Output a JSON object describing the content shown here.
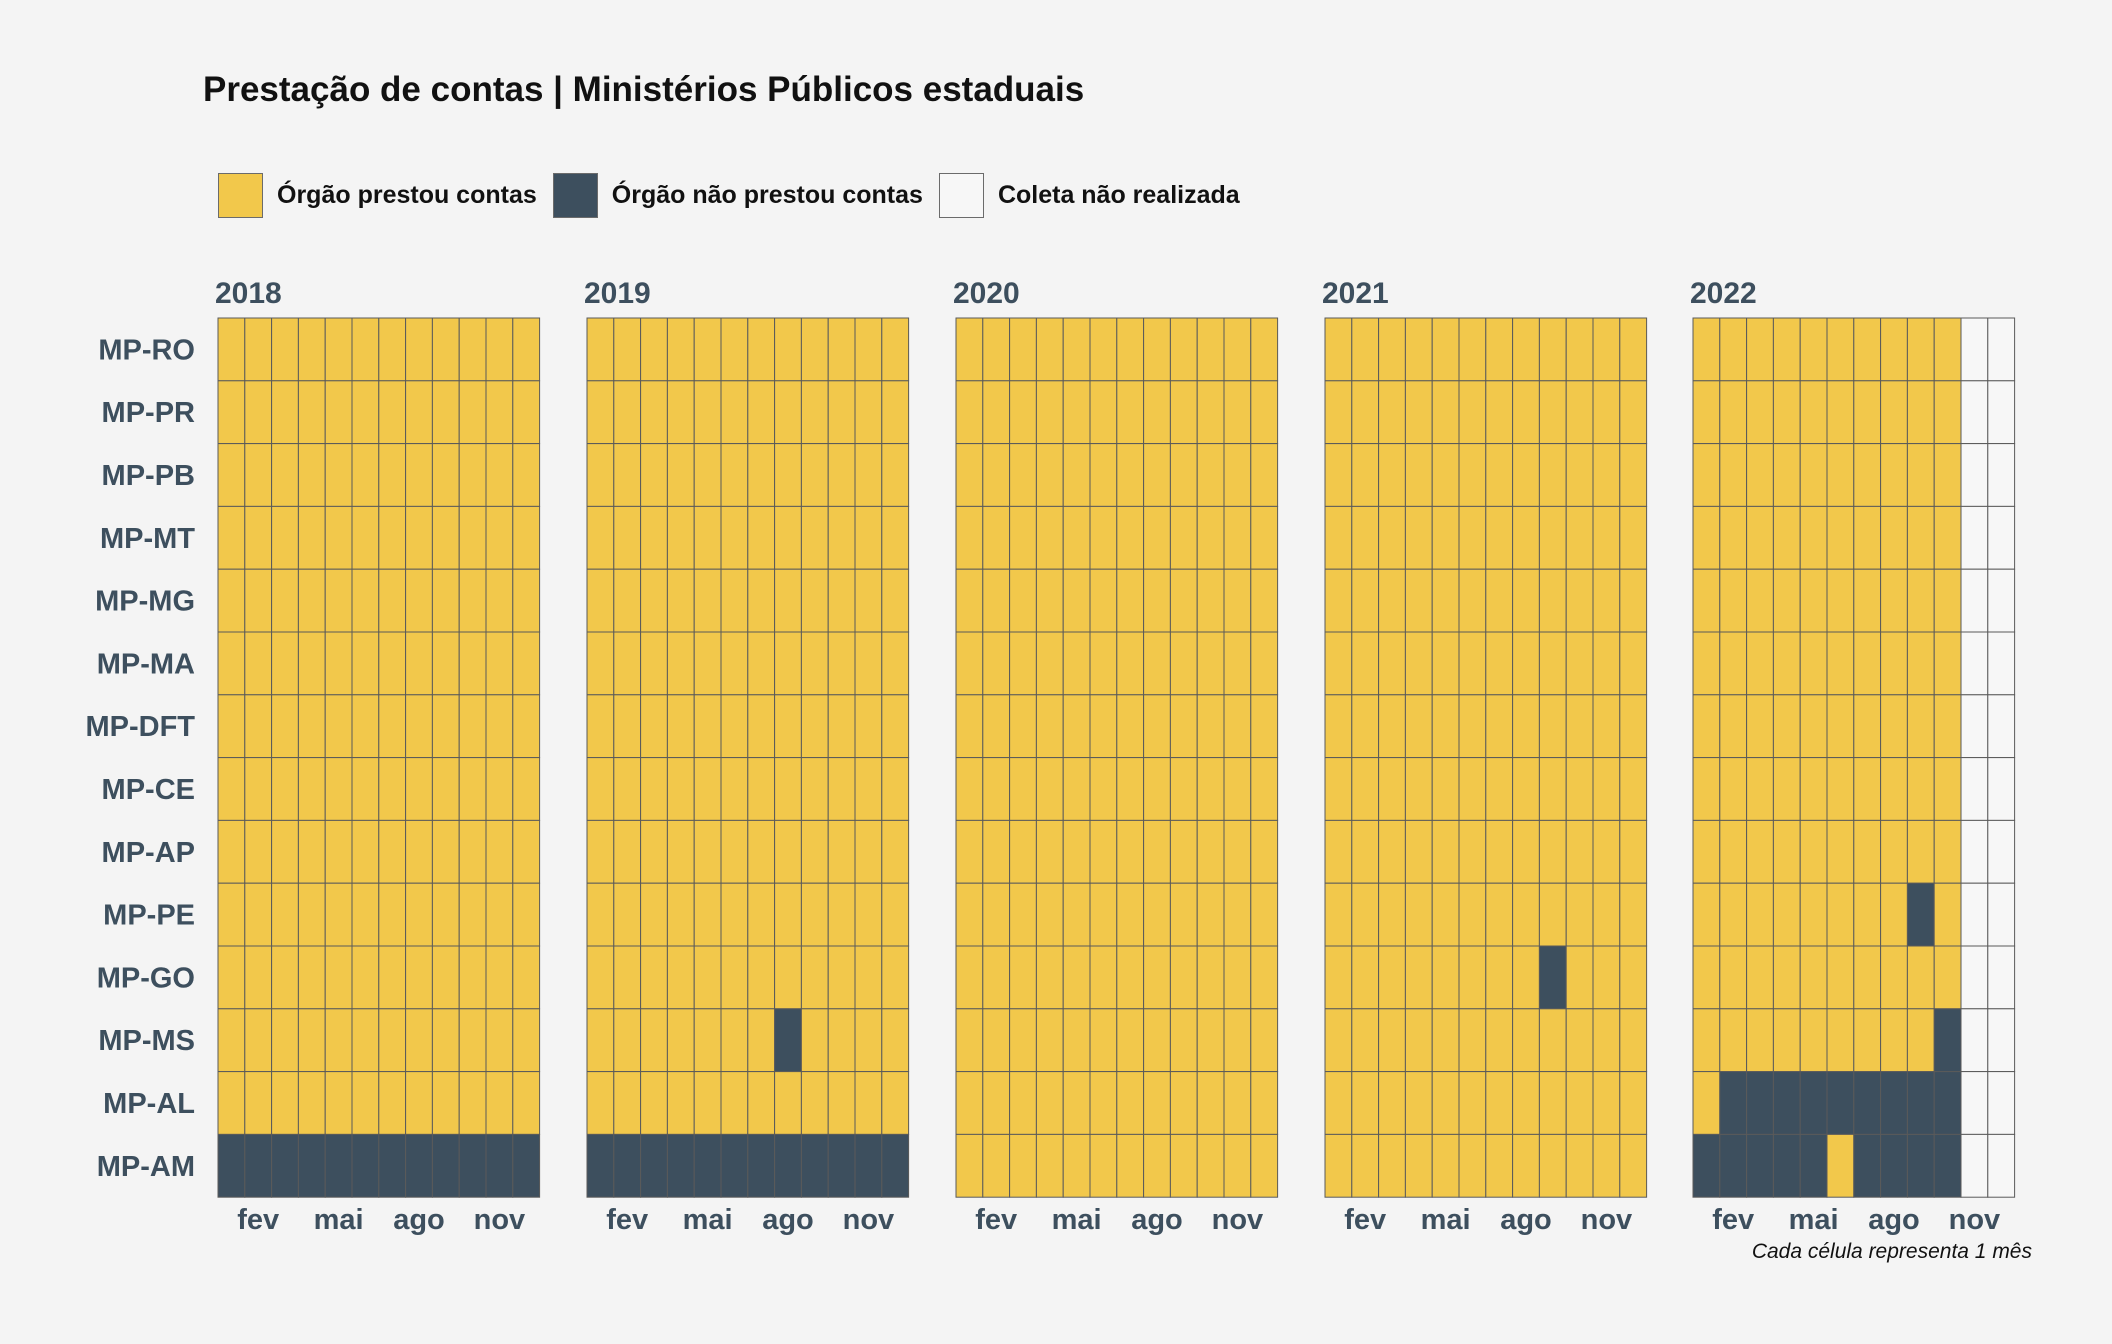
{
  "title": "Prestação de contas | Ministérios Públicos estaduais",
  "caption": "Cada célula representa 1 mês",
  "legend": [
    {
      "label": "Órgão prestou contas",
      "color": "#f2c84b"
    },
    {
      "label": "Órgão não prestou contas",
      "color": "#3d4f5e"
    },
    {
      "label": "Coleta não realizada",
      "color": "#f7f7f7"
    }
  ],
  "colors": {
    "prestou": "#f2c84b",
    "nao_prestou": "#3d4f5e",
    "nao_realizada": "#f7f7f7",
    "cell_border": "#5a5a5a",
    "text_dark": "#3d4f5e",
    "background": "#f4f4f4"
  },
  "chart_data": {
    "type": "heatmap",
    "title": "Prestação de contas | Ministérios Públicos estaduais",
    "caption": "Cada célula representa 1 mês",
    "years": [
      "2018",
      "2019",
      "2020",
      "2021",
      "2022"
    ],
    "months_per_year": 12,
    "x_tick_labels": [
      {
        "month": 2,
        "label": "fev"
      },
      {
        "month": 5,
        "label": "mai"
      },
      {
        "month": 8,
        "label": "ago"
      },
      {
        "month": 11,
        "label": "nov"
      }
    ],
    "rows": [
      "MP-RO",
      "MP-PR",
      "MP-PB",
      "MP-MT",
      "MP-MG",
      "MP-MA",
      "MP-DFT",
      "MP-CE",
      "MP-AP",
      "MP-PE",
      "MP-GO",
      "MP-MS",
      "MP-AL",
      "MP-AM"
    ],
    "status_legend": {
      "P": "Órgão prestou contas",
      "N": "Órgão não prestou contas",
      "-": "Coleta não realizada"
    },
    "status": {
      "2018": {
        "MP-RO": "PPPPPPPPPPPP",
        "MP-PR": "PPPPPPPPPPPP",
        "MP-PB": "PPPPPPPPPPPP",
        "MP-MT": "PPPPPPPPPPPP",
        "MP-MG": "PPPPPPPPPPPP",
        "MP-MA": "PPPPPPPPPPPP",
        "MP-DFT": "PPPPPPPPPPPP",
        "MP-CE": "PPPPPPPPPPPP",
        "MP-AP": "PPPPPPPPPPPP",
        "MP-PE": "PPPPPPPPPPPP",
        "MP-GO": "PPPPPPPPPPPP",
        "MP-MS": "PPPPPPPPPPPP",
        "MP-AL": "PPPPPPPPPPPP",
        "MP-AM": "NNNNNNNNNNNN"
      },
      "2019": {
        "MP-RO": "PPPPPPPPPPPP",
        "MP-PR": "PPPPPPPPPPPP",
        "MP-PB": "PPPPPPPPPPPP",
        "MP-MT": "PPPPPPPPPPPP",
        "MP-MG": "PPPPPPPPPPPP",
        "MP-MA": "PPPPPPPPPPPP",
        "MP-DFT": "PPPPPPPPPPPP",
        "MP-CE": "PPPPPPPPPPPP",
        "MP-AP": "PPPPPPPPPPPP",
        "MP-PE": "PPPPPPPPPPPP",
        "MP-GO": "PPPPPPPPPPPP",
        "MP-MS": "PPPPPPPNPPPP",
        "MP-AL": "PPPPPPPPPPPP",
        "MP-AM": "NNNNNNNNNNNN"
      },
      "2020": {
        "MP-RO": "PPPPPPPPPPPP",
        "MP-PR": "PPPPPPPPPPPP",
        "MP-PB": "PPPPPPPPPPPP",
        "MP-MT": "PPPPPPPPPPPP",
        "MP-MG": "PPPPPPPPPPPP",
        "MP-MA": "PPPPPPPPPPPP",
        "MP-DFT": "PPPPPPPPPPPP",
        "MP-CE": "PPPPPPPPPPPP",
        "MP-AP": "PPPPPPPPPPPP",
        "MP-PE": "PPPPPPPPPPPP",
        "MP-GO": "PPPPPPPPPPPP",
        "MP-MS": "PPPPPPPPPPPP",
        "MP-AL": "PPPPPPPPPPPP",
        "MP-AM": "PPPPPPPPPPPP"
      },
      "2021": {
        "MP-RO": "PPPPPPPPPPPP",
        "MP-PR": "PPPPPPPPPPPP",
        "MP-PB": "PPPPPPPPPPPP",
        "MP-MT": "PPPPPPPPPPPP",
        "MP-MG": "PPPPPPPPPPPP",
        "MP-MA": "PPPPPPPPPPPP",
        "MP-DFT": "PPPPPPPPPPPP",
        "MP-CE": "PPPPPPPPPPPP",
        "MP-AP": "PPPPPPPPPPPP",
        "MP-PE": "PPPPPPPPPPPP",
        "MP-GO": "PPPPPPPPNPPP",
        "MP-MS": "PPPPPPPPPPPP",
        "MP-AL": "PPPPPPPPPPPP",
        "MP-AM": "PPPPPPPPPPPP"
      },
      "2022": {
        "MP-RO": "PPPPPPPPPP--",
        "MP-PR": "PPPPPPPPPP--",
        "MP-PB": "PPPPPPPPPP--",
        "MP-MT": "PPPPPPPPPP--",
        "MP-MG": "PPPPPPPPPP--",
        "MP-MA": "PPPPPPPPPP--",
        "MP-DFT": "PPPPPPPPPP--",
        "MP-CE": "PPPPPPPPPP--",
        "MP-AP": "PPPPPPPPPP--",
        "MP-PE": "PPPPPPPPNP--",
        "MP-GO": "PPPPPPPPPP--",
        "MP-MS": "PPPPPPPPPN--",
        "MP-AL": "PNNNNNNNNN--",
        "MP-AM": "NNNNNPNNNN--"
      }
    }
  }
}
